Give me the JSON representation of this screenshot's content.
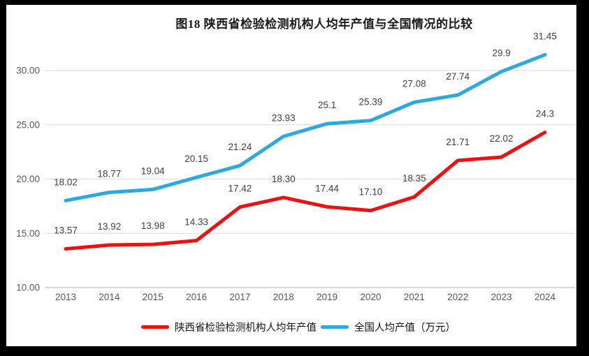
{
  "frame": {
    "background": "#000000",
    "panel_background": "#ffffff"
  },
  "chart_data": {
    "type": "line",
    "title": "图18 陕西省检验检测机构人均年产值与全国情况的比较",
    "categories": [
      "2013",
      "2014",
      "2015",
      "2016",
      "2017",
      "2018",
      "2019",
      "2020",
      "2021",
      "2022",
      "2023",
      "2024"
    ],
    "series": [
      {
        "name": "陕西省检验检测机构人均年产值",
        "color": "#ed1111",
        "values": [
          13.57,
          13.92,
          13.98,
          14.33,
          17.42,
          18.3,
          17.44,
          17.1,
          18.35,
          21.71,
          22.02,
          24.3
        ],
        "labels": [
          "13.57",
          "13.92",
          "13.98",
          "14.33",
          "17.42",
          "18.30",
          "17.44",
          "17.10",
          "18.35",
          "21.71",
          "22.02",
          "24.3"
        ]
      },
      {
        "name": "全国人均产值（万元）",
        "color": "#2ba9e1",
        "values": [
          18.02,
          18.77,
          19.04,
          20.15,
          21.24,
          23.93,
          25.1,
          25.39,
          27.08,
          27.74,
          29.9,
          31.45
        ],
        "labels": [
          "18.02",
          "18.77",
          "19.04",
          "20.15",
          "21.24",
          "23.93",
          "25.1",
          "25.39",
          "27.08",
          "27.74",
          "29.9",
          "31.45"
        ]
      }
    ],
    "y_axis": {
      "tick_labels": [
        "30.00",
        "25.00",
        "20.00",
        "15.00",
        "10.00"
      ],
      "tick_values": [
        30,
        25,
        20,
        15,
        10
      ],
      "min": 10,
      "max": 30
    },
    "xlabel": "",
    "ylabel": "",
    "grid": "horizontal",
    "legend_position": "bottom",
    "colors": {
      "gridline": "#d9d9d9",
      "axis_line": "#bfbfbf",
      "tick_text": "#595959",
      "data_label_text": "#404040"
    }
  }
}
